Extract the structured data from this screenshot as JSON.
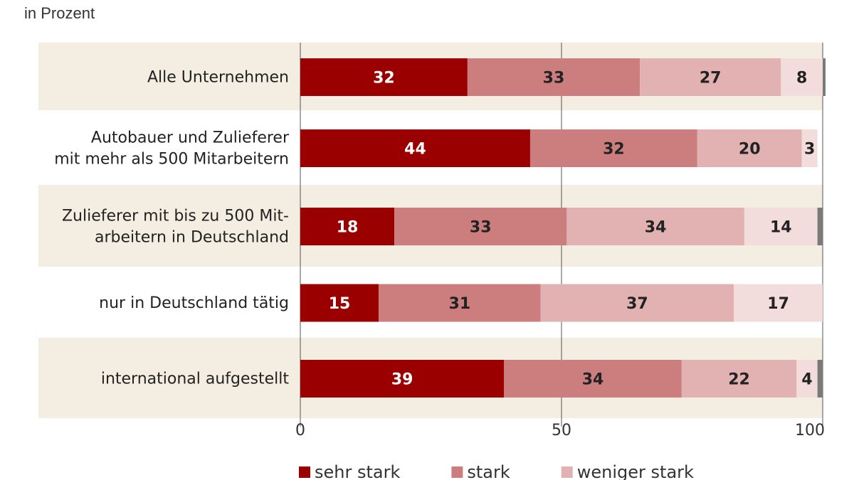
{
  "chart_data": {
    "type": "bar",
    "orientation": "horizontal",
    "stacked": true,
    "subtitle": "in Prozent",
    "categories": [
      [
        "Alle Unternehmen"
      ],
      [
        "Autobauer und Zulieferer",
        "mit mehr als 500 Mitarbeitern"
      ],
      [
        "Zulieferer mit bis zu 500 Mit-",
        "arbeitern in Deutschland"
      ],
      [
        "nur in Deutschland tätig"
      ],
      [
        "international aufgestellt"
      ]
    ],
    "series": [
      {
        "name": "sehr stark",
        "color": "#9b0000",
        "label_color": "#ffffff",
        "values": [
          32,
          44,
          18,
          15,
          39
        ]
      },
      {
        "name": "stark",
        "color": "#cc7d7d",
        "label_color": "#222222",
        "values": [
          33,
          32,
          33,
          31,
          34
        ]
      },
      {
        "name": "weniger stark",
        "color": "#e2b2b2",
        "label_color": "#222222",
        "values": [
          27,
          20,
          34,
          37,
          22
        ]
      },
      {
        "color": "#f3dcdc",
        "label_color": "#222222",
        "values": [
          8,
          3,
          14,
          17,
          4
        ]
      },
      {
        "color": "#7a7a7a",
        "values": [
          1,
          0,
          1,
          0,
          1
        ],
        "unlabeled": true
      }
    ],
    "xlim": [
      0,
      100
    ],
    "xticks": [
      "0",
      "50",
      "100"
    ],
    "gridline_at": 50,
    "legend_placement": "bottom",
    "band_color": "#f3ede2"
  }
}
